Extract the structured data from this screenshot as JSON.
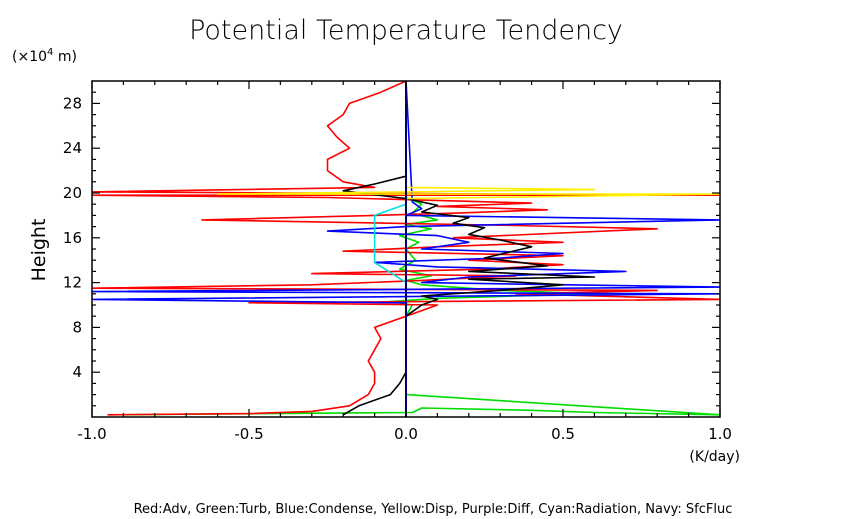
{
  "chart_data": {
    "type": "line",
    "title": "Potential Temperature Tendency",
    "ylabel": "Height",
    "y_unit_prefix": "(×10",
    "y_unit_exp": "4",
    "y_unit_suffix": " m)",
    "xlabel_unit": "(K/day)",
    "xlim": [
      -1.0,
      1.0
    ],
    "ylim": [
      0,
      30
    ],
    "xticks": [
      "-1.0",
      "-0.5",
      "0.0",
      "0.5",
      "1.0"
    ],
    "xtick_values": [
      -1.0,
      -0.5,
      0.0,
      0.5,
      1.0
    ],
    "yticks": [
      "4",
      "8",
      "12",
      "16",
      "20",
      "24",
      "28"
    ],
    "ytick_values": [
      4,
      8,
      12,
      16,
      20,
      24,
      28
    ],
    "grid": false,
    "legend_text": "Red:Adv, Green:Turb, Blue:Condense, Yellow:Disp, Purple:Diff, Cyan:Radiation, Navy: SfcFluc",
    "series": [
      {
        "color": "#00dd00",
        "points": [
          [
            -0.95,
            0.2
          ],
          [
            0.02,
            0.4
          ],
          [
            0.05,
            0.8
          ],
          [
            0.4,
            0.6
          ],
          [
            0.6,
            0.4
          ],
          [
            1.0,
            0.2
          ],
          [
            0.0,
            2
          ],
          [
            0.0,
            6
          ],
          [
            0.0,
            9
          ],
          [
            0.02,
            10
          ],
          [
            -0.05,
            10.3
          ],
          [
            0.1,
            10.6
          ],
          [
            0.35,
            10.8
          ],
          [
            0.6,
            11.0
          ],
          [
            0.3,
            11.3
          ],
          [
            0.05,
            11.8
          ],
          [
            0.0,
            12.2
          ],
          [
            0.08,
            12.6
          ],
          [
            -0.02,
            13.2
          ],
          [
            0.03,
            14
          ],
          [
            0.0,
            15
          ],
          [
            0.04,
            15.6
          ],
          [
            -0.02,
            16.2
          ],
          [
            0.08,
            16.8
          ],
          [
            0.0,
            17.2
          ],
          [
            0.1,
            17.6
          ],
          [
            0.02,
            18.2
          ],
          [
            0.05,
            19
          ],
          [
            0.0,
            19.6
          ],
          [
            0.0,
            30
          ]
        ]
      },
      {
        "color": "#ff0000",
        "points": [
          [
            -0.95,
            0.2
          ],
          [
            -0.5,
            0.3
          ],
          [
            -0.3,
            0.5
          ],
          [
            -0.18,
            1
          ],
          [
            -0.12,
            2
          ],
          [
            -0.1,
            3
          ],
          [
            -0.1,
            4
          ],
          [
            -0.12,
            5
          ],
          [
            -0.1,
            6
          ],
          [
            -0.08,
            7
          ],
          [
            -0.1,
            8
          ],
          [
            0.1,
            10
          ],
          [
            -0.5,
            10.2
          ],
          [
            1.0,
            10.5
          ],
          [
            0.35,
            11
          ],
          [
            0.8,
            11.3
          ],
          [
            -1.0,
            11.5
          ],
          [
            -0.3,
            11.8
          ],
          [
            0.05,
            12.2
          ],
          [
            0.35,
            12.6
          ],
          [
            -0.3,
            12.8
          ],
          [
            0.25,
            13.2
          ],
          [
            0.5,
            13.6
          ],
          [
            0.2,
            14
          ],
          [
            0.5,
            14.4
          ],
          [
            -0.2,
            14.8
          ],
          [
            0.1,
            15.2
          ],
          [
            0.5,
            15.6
          ],
          [
            0.15,
            16
          ],
          [
            0.8,
            16.8
          ],
          [
            0.35,
            17.1
          ],
          [
            -0.65,
            17.6
          ],
          [
            -0.1,
            18
          ],
          [
            0.15,
            18.2
          ],
          [
            0.45,
            18.5
          ],
          [
            0.1,
            18.8
          ],
          [
            0.4,
            19.1
          ],
          [
            -0.25,
            19.6
          ],
          [
            -1.0,
            19.8
          ],
          [
            1.0,
            19.8
          ],
          [
            -1.0,
            20.1
          ],
          [
            -0.1,
            20.5
          ],
          [
            -0.2,
            21
          ],
          [
            -0.25,
            22
          ],
          [
            -0.25,
            23
          ],
          [
            -0.18,
            24
          ],
          [
            -0.22,
            25
          ],
          [
            -0.25,
            26
          ],
          [
            -0.2,
            27
          ],
          [
            -0.18,
            28
          ],
          [
            -0.08,
            29
          ],
          [
            0.0,
            30
          ]
        ]
      },
      {
        "color": "#0000ff",
        "points": [
          [
            0.0,
            0.2
          ],
          [
            0.0,
            6
          ],
          [
            0.0,
            10.2
          ],
          [
            -1.0,
            10.5
          ],
          [
            0.2,
            10.8
          ],
          [
            1.0,
            11.0
          ],
          [
            -1.0,
            11.2
          ],
          [
            1.0,
            11.6
          ],
          [
            0.05,
            12
          ],
          [
            0.2,
            12.5
          ],
          [
            0.7,
            13.0
          ],
          [
            0.1,
            13.4
          ],
          [
            -0.1,
            13.8
          ],
          [
            0.3,
            14.2
          ],
          [
            0.5,
            14.6
          ],
          [
            0.05,
            15
          ],
          [
            0.2,
            15.6
          ],
          [
            0.1,
            16.2
          ],
          [
            -0.25,
            16.6
          ],
          [
            0.0,
            17.0
          ],
          [
            1.0,
            17.6
          ],
          [
            0.0,
            18.0
          ],
          [
            0.05,
            18.6
          ],
          [
            0.02,
            19.2
          ],
          [
            0.0,
            30
          ]
        ]
      },
      {
        "color": "#000000",
        "points": [
          [
            -0.2,
            0.2
          ],
          [
            -0.15,
            1
          ],
          [
            -0.05,
            2
          ],
          [
            -0.02,
            3
          ],
          [
            0.0,
            4
          ],
          [
            0.0,
            9
          ],
          [
            0.05,
            10.0
          ],
          [
            0.1,
            10.5
          ],
          [
            0.05,
            10.8
          ],
          [
            0.3,
            11.3
          ],
          [
            0.5,
            11.8
          ],
          [
            0.2,
            12.3
          ],
          [
            0.6,
            12.5
          ],
          [
            0.2,
            13.0
          ],
          [
            0.45,
            13.5
          ],
          [
            0.25,
            14.2
          ],
          [
            0.4,
            15.2
          ],
          [
            0.3,
            15.8
          ],
          [
            0.2,
            16.3
          ],
          [
            0.25,
            16.9
          ],
          [
            0.15,
            17.3
          ],
          [
            0.2,
            17.8
          ],
          [
            0.05,
            18.3
          ],
          [
            0.1,
            18.9
          ],
          [
            0.0,
            19.5
          ],
          [
            -0.2,
            20.2
          ],
          [
            -0.1,
            20.8
          ],
          [
            0.0,
            21.5
          ],
          [
            0.0,
            30
          ]
        ]
      },
      {
        "color": "#ffee00",
        "points": [
          [
            0.0,
            0.2
          ],
          [
            0.0,
            19.5
          ],
          [
            1.0,
            19.9
          ],
          [
            -0.6,
            19.9
          ],
          [
            0.6,
            20.3
          ],
          [
            0.0,
            20.5
          ],
          [
            0.0,
            30
          ]
        ]
      },
      {
        "color": "#00e0e0",
        "points": [
          [
            0.0,
            0.2
          ],
          [
            0.0,
            12
          ],
          [
            -0.1,
            13.8
          ],
          [
            -0.1,
            18
          ],
          [
            -0.05,
            18.5
          ],
          [
            0.0,
            19
          ],
          [
            0.0,
            30
          ]
        ]
      }
    ]
  }
}
